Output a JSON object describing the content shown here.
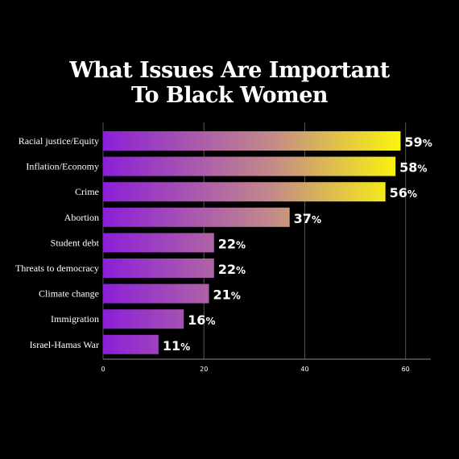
{
  "chart_data": {
    "type": "bar",
    "orientation": "horizontal",
    "title": [
      "What Issues Are Important",
      "To Black Women"
    ],
    "categories": [
      "Racial justice/Equity",
      "Inflation/Economy",
      "Crime",
      "Abortion",
      "Student debt",
      "Threats to democracy",
      "Climate change",
      "Immigration",
      "Israel-Hamas War"
    ],
    "values": [
      59,
      58,
      56,
      37,
      22,
      22,
      21,
      16,
      11
    ],
    "value_suffix": "%",
    "xlim": [
      0,
      65
    ],
    "x_ticks": [
      0,
      20,
      40,
      60
    ],
    "grid": true,
    "colors": {
      "background": "#000000",
      "bar_start": "#8b1fd8",
      "bar_mid": "#c38a8a",
      "bar_end": "#ffff00",
      "grid": "#555555",
      "text": "#ffffff"
    }
  }
}
